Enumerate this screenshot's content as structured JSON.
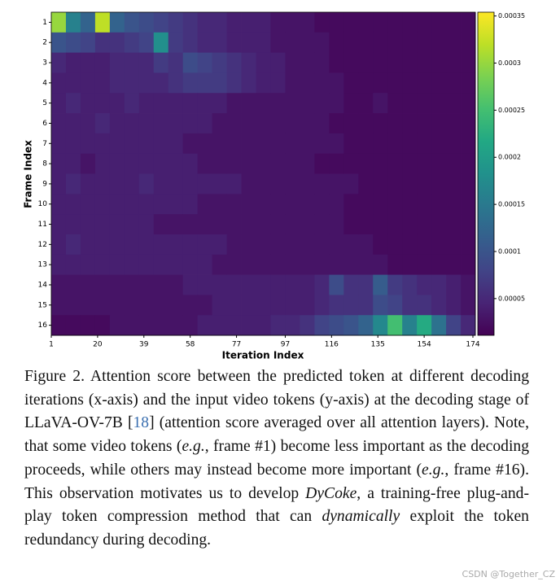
{
  "chart_data": {
    "type": "heatmap",
    "xlabel": "Iteration Index",
    "ylabel": "Frame Index",
    "y_categories": [
      "1",
      "2",
      "3",
      "4",
      "5",
      "6",
      "7",
      "8",
      "9",
      "10",
      "11",
      "12",
      "13",
      "14",
      "15",
      "16"
    ],
    "xbins": [
      1,
      7,
      13,
      19,
      25,
      31,
      37,
      43,
      49,
      55,
      61,
      67,
      73,
      79,
      85,
      91,
      97,
      103,
      109,
      115,
      121,
      127,
      133,
      139,
      145,
      151,
      157,
      163,
      169,
      175
    ],
    "xlim": [
      1,
      175
    ],
    "xticks": [
      1,
      20,
      39,
      58,
      77,
      97,
      116,
      135,
      154,
      174
    ],
    "colormap": "viridis",
    "clim": [
      1.1e-05,
      0.000354
    ],
    "cticks": [
      5e-05,
      0.0001,
      0.00015,
      0.0002,
      0.00025,
      0.0003,
      0.00035
    ],
    "values": [
      [
        0.0003,
        0.00016,
        0.00012,
        0.00032,
        0.00012,
        0.0001,
        9e-05,
        8e-05,
        7e-05,
        6e-05,
        5e-05,
        5e-05,
        4e-05,
        4e-05,
        4e-05,
        3e-05,
        3e-05,
        3e-05,
        2e-05,
        2e-05,
        2e-05,
        2e-05,
        2e-05,
        2e-05,
        2e-05,
        2e-05,
        2e-05,
        2e-05,
        2e-05
      ],
      [
        0.0001,
        9e-05,
        8e-05,
        6e-05,
        6e-05,
        7e-05,
        8e-05,
        0.00018,
        7e-05,
        6e-05,
        5e-05,
        5e-05,
        4e-05,
        4e-05,
        4e-05,
        3e-05,
        3e-05,
        3e-05,
        3e-05,
        2e-05,
        2e-05,
        2e-05,
        2e-05,
        2e-05,
        2e-05,
        2e-05,
        2e-05,
        2e-05,
        2e-05
      ],
      [
        5e-05,
        4e-05,
        4e-05,
        4e-05,
        5e-05,
        5e-05,
        5e-05,
        7e-05,
        6e-05,
        9e-05,
        8e-05,
        7e-05,
        6e-05,
        5e-05,
        4e-05,
        4e-05,
        3e-05,
        3e-05,
        3e-05,
        2e-05,
        2e-05,
        2e-05,
        2e-05,
        2e-05,
        2e-05,
        2e-05,
        2e-05,
        2e-05,
        2e-05
      ],
      [
        4e-05,
        4e-05,
        4e-05,
        4e-05,
        5e-05,
        5e-05,
        5e-05,
        5e-05,
        6e-05,
        7e-05,
        7e-05,
        7e-05,
        6e-05,
        5e-05,
        4e-05,
        4e-05,
        3e-05,
        3e-05,
        3e-05,
        3e-05,
        2e-05,
        2e-05,
        2e-05,
        2e-05,
        2e-05,
        2e-05,
        2e-05,
        2e-05,
        2e-05
      ],
      [
        4e-05,
        5e-05,
        4e-05,
        4e-05,
        4e-05,
        5e-05,
        4e-05,
        4e-05,
        4e-05,
        4e-05,
        4e-05,
        4e-05,
        3e-05,
        3e-05,
        3e-05,
        3e-05,
        3e-05,
        3e-05,
        3e-05,
        3e-05,
        2e-05,
        2e-05,
        3e-05,
        2e-05,
        2e-05,
        2e-05,
        2e-05,
        2e-05,
        2e-05
      ],
      [
        4e-05,
        4e-05,
        4e-05,
        5e-05,
        4e-05,
        4e-05,
        4e-05,
        4e-05,
        4e-05,
        4e-05,
        4e-05,
        3e-05,
        3e-05,
        3e-05,
        3e-05,
        3e-05,
        3e-05,
        3e-05,
        3e-05,
        2e-05,
        2e-05,
        2e-05,
        2e-05,
        2e-05,
        2e-05,
        2e-05,
        2e-05,
        2e-05,
        2e-05
      ],
      [
        4e-05,
        4e-05,
        4e-05,
        4e-05,
        4e-05,
        4e-05,
        4e-05,
        4e-05,
        4e-05,
        3e-05,
        3e-05,
        3e-05,
        3e-05,
        3e-05,
        3e-05,
        3e-05,
        3e-05,
        3e-05,
        3e-05,
        3e-05,
        2e-05,
        2e-05,
        2e-05,
        2e-05,
        2e-05,
        2e-05,
        2e-05,
        2e-05,
        2e-05
      ],
      [
        4e-05,
        4e-05,
        3e-05,
        4e-05,
        4e-05,
        4e-05,
        4e-05,
        4e-05,
        4e-05,
        4e-05,
        3e-05,
        3e-05,
        3e-05,
        3e-05,
        3e-05,
        3e-05,
        3e-05,
        3e-05,
        2e-05,
        2e-05,
        2e-05,
        2e-05,
        2e-05,
        2e-05,
        2e-05,
        2e-05,
        2e-05,
        2e-05,
        2e-05
      ],
      [
        4e-05,
        5e-05,
        4e-05,
        4e-05,
        4e-05,
        4e-05,
        5e-05,
        4e-05,
        4e-05,
        4e-05,
        4e-05,
        4e-05,
        4e-05,
        3e-05,
        3e-05,
        3e-05,
        3e-05,
        3e-05,
        3e-05,
        3e-05,
        3e-05,
        2e-05,
        2e-05,
        2e-05,
        2e-05,
        2e-05,
        2e-05,
        2e-05,
        2e-05
      ],
      [
        4e-05,
        4e-05,
        4e-05,
        4e-05,
        4e-05,
        4e-05,
        4e-05,
        4e-05,
        4e-05,
        4e-05,
        3e-05,
        3e-05,
        3e-05,
        3e-05,
        3e-05,
        3e-05,
        3e-05,
        3e-05,
        3e-05,
        3e-05,
        2e-05,
        2e-05,
        2e-05,
        2e-05,
        2e-05,
        2e-05,
        2e-05,
        2e-05,
        2e-05
      ],
      [
        4e-05,
        4e-05,
        4e-05,
        4e-05,
        4e-05,
        4e-05,
        4e-05,
        3e-05,
        3e-05,
        3e-05,
        3e-05,
        3e-05,
        3e-05,
        3e-05,
        3e-05,
        3e-05,
        3e-05,
        3e-05,
        3e-05,
        3e-05,
        2e-05,
        2e-05,
        2e-05,
        2e-05,
        2e-05,
        2e-05,
        2e-05,
        2e-05,
        2e-05
      ],
      [
        4e-05,
        5e-05,
        4e-05,
        4e-05,
        4e-05,
        4e-05,
        4e-05,
        4e-05,
        4e-05,
        4e-05,
        4e-05,
        4e-05,
        3e-05,
        3e-05,
        3e-05,
        3e-05,
        3e-05,
        3e-05,
        3e-05,
        3e-05,
        3e-05,
        3e-05,
        2e-05,
        2e-05,
        2e-05,
        2e-05,
        2e-05,
        2e-05,
        2e-05
      ],
      [
        4e-05,
        4e-05,
        4e-05,
        4e-05,
        4e-05,
        4e-05,
        4e-05,
        4e-05,
        4e-05,
        4e-05,
        4e-05,
        3e-05,
        3e-05,
        3e-05,
        3e-05,
        3e-05,
        3e-05,
        3e-05,
        3e-05,
        3e-05,
        3e-05,
        3e-05,
        3e-05,
        2e-05,
        2e-05,
        2e-05,
        2e-05,
        2e-05,
        2e-05
      ],
      [
        3e-05,
        3e-05,
        3e-05,
        3e-05,
        3e-05,
        3e-05,
        3e-05,
        3e-05,
        3e-05,
        4e-05,
        4e-05,
        4e-05,
        4e-05,
        4e-05,
        4e-05,
        4e-05,
        4e-05,
        4e-05,
        5e-05,
        9e-05,
        6e-05,
        6e-05,
        0.00011,
        7e-05,
        6e-05,
        5e-05,
        5e-05,
        4e-05,
        3e-05
      ],
      [
        3e-05,
        3e-05,
        3e-05,
        3e-05,
        3e-05,
        3e-05,
        3e-05,
        3e-05,
        3e-05,
        3e-05,
        3e-05,
        4e-05,
        4e-05,
        4e-05,
        4e-05,
        4e-05,
        4e-05,
        4e-05,
        5e-05,
        6e-05,
        6e-05,
        6e-05,
        9e-05,
        8e-05,
        6e-05,
        6e-05,
        5e-05,
        4e-05,
        3e-05
      ],
      [
        2e-05,
        2e-05,
        2e-05,
        2e-05,
        3e-05,
        3e-05,
        3e-05,
        3e-05,
        3e-05,
        3e-05,
        4e-05,
        4e-05,
        4e-05,
        4e-05,
        4e-05,
        5e-05,
        5e-05,
        6e-05,
        8e-05,
        9e-05,
        0.0001,
        0.00012,
        0.00017,
        0.00025,
        0.00016,
        0.00022,
        0.00014,
        8e-05,
        5e-05
      ]
    ]
  },
  "caption": [
    {
      "text": "Figure 2. Attention score between the predicted token at different decoding iterations (x-axis) and the input video tokens (y-axis) at the decoding stage of LLaVA-OV-7B [",
      "style": "normal"
    },
    {
      "text": "18",
      "style": "link"
    },
    {
      "text": "] (attention score averaged over all attention layers). Note, that some video tokens (",
      "style": "normal"
    },
    {
      "text": "e.g.",
      "style": "italic"
    },
    {
      "text": ", frame #1) become less important as the decoding proceeds, while others may instead become more important (",
      "style": "normal"
    },
    {
      "text": "e.g.",
      "style": "italic"
    },
    {
      "text": ", frame #16). This observation motivates us to develop ",
      "style": "normal"
    },
    {
      "text": "DyCoke",
      "style": "italic"
    },
    {
      "text": ", a training-free plug-and-play token compression method that can ",
      "style": "normal"
    },
    {
      "text": "dynamically",
      "style": "italic"
    },
    {
      "text": " exploit the token redundancy during decoding.",
      "style": "normal"
    }
  ],
  "watermark": "CSDN @Together_CZ"
}
